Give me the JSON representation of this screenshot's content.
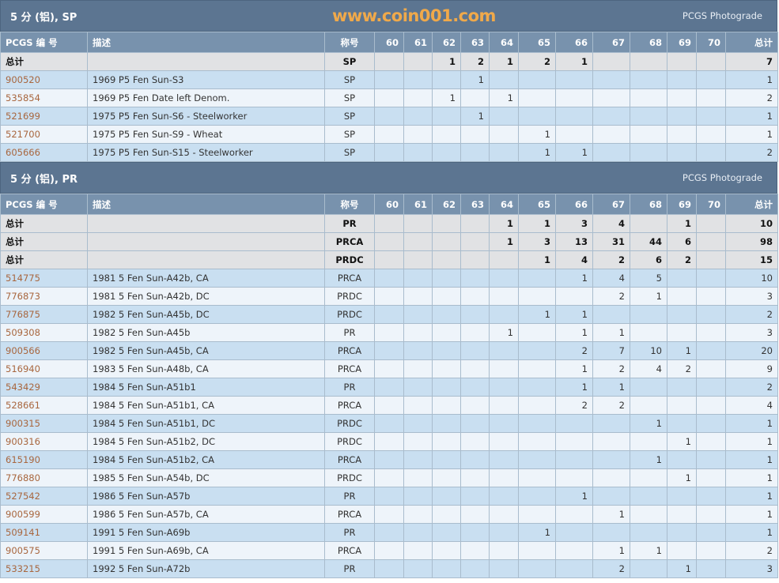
{
  "columns": {
    "pcgs": "PCGS 编 号",
    "desc": "描述",
    "designation": "称号",
    "grades": [
      "60",
      "61",
      "62",
      "63",
      "64",
      "65",
      "66",
      "67",
      "68",
      "69",
      "70"
    ],
    "total": "总计"
  },
  "photograde_label": "PCGS Photograde",
  "total_label": "总计",
  "colors": {
    "title_bar": "#5c7591",
    "header": "#7892ad",
    "link": "#a8663e",
    "row_alt": "#c9dff1",
    "total_row": "#e1e2e4"
  },
  "watermark": "www.coin001.com",
  "sections": [
    {
      "title": "5 分 (铝), SP",
      "totals": [
        {
          "designation": "SP",
          "grades": [
            "",
            "",
            "1",
            "2",
            "1",
            "2",
            "1",
            "",
            "",
            "",
            ""
          ],
          "total": "7"
        }
      ],
      "rows": [
        {
          "pcgs": "900520",
          "desc": "1969 P5 Fen Sun-S3",
          "designation": "SP",
          "grades": [
            "",
            "",
            "",
            "1",
            "",
            "",
            "",
            "",
            "",
            "",
            ""
          ],
          "total": "1"
        },
        {
          "pcgs": "535854",
          "desc": "1969 P5 Fen Date left Denom.",
          "designation": "SP",
          "grades": [
            "",
            "",
            "1",
            "",
            "1",
            "",
            "",
            "",
            "",
            "",
            ""
          ],
          "total": "2"
        },
        {
          "pcgs": "521699",
          "desc": "1975 P5 Fen Sun-S6 - Steelworker",
          "designation": "SP",
          "grades": [
            "",
            "",
            "",
            "1",
            "",
            "",
            "",
            "",
            "",
            "",
            ""
          ],
          "total": "1"
        },
        {
          "pcgs": "521700",
          "desc": "1975 P5 Fen Sun-S9 - Wheat",
          "designation": "SP",
          "grades": [
            "",
            "",
            "",
            "",
            "",
            "1",
            "",
            "",
            "",
            "",
            ""
          ],
          "total": "1"
        },
        {
          "pcgs": "605666",
          "desc": "1975 P5 Fen Sun-S15 - Steelworker",
          "designation": "SP",
          "grades": [
            "",
            "",
            "",
            "",
            "",
            "1",
            "1",
            "",
            "",
            "",
            ""
          ],
          "total": "2"
        }
      ]
    },
    {
      "title": "5 分 (铝), PR",
      "totals": [
        {
          "designation": "PR",
          "grades": [
            "",
            "",
            "",
            "",
            "1",
            "1",
            "3",
            "4",
            "",
            "1",
            ""
          ],
          "total": "10"
        },
        {
          "designation": "PRCA",
          "grades": [
            "",
            "",
            "",
            "",
            "1",
            "3",
            "13",
            "31",
            "44",
            "6",
            ""
          ],
          "total": "98"
        },
        {
          "designation": "PRDC",
          "grades": [
            "",
            "",
            "",
            "",
            "",
            "1",
            "4",
            "2",
            "6",
            "2",
            ""
          ],
          "total": "15"
        }
      ],
      "rows": [
        {
          "pcgs": "514775",
          "desc": "1981 5 Fen Sun-A42b, CA",
          "designation": "PRCA",
          "grades": [
            "",
            "",
            "",
            "",
            "",
            "",
            "1",
            "4",
            "5",
            "",
            ""
          ],
          "total": "10"
        },
        {
          "pcgs": "776873",
          "desc": "1981 5 Fen Sun-A42b, DC",
          "designation": "PRDC",
          "grades": [
            "",
            "",
            "",
            "",
            "",
            "",
            "",
            "2",
            "1",
            "",
            ""
          ],
          "total": "3"
        },
        {
          "pcgs": "776875",
          "desc": "1982 5 Fen Sun-A45b, DC",
          "designation": "PRDC",
          "grades": [
            "",
            "",
            "",
            "",
            "",
            "1",
            "1",
            "",
            "",
            "",
            ""
          ],
          "total": "2"
        },
        {
          "pcgs": "509308",
          "desc": "1982 5 Fen Sun-A45b",
          "designation": "PR",
          "grades": [
            "",
            "",
            "",
            "",
            "1",
            "",
            "1",
            "1",
            "",
            "",
            ""
          ],
          "total": "3"
        },
        {
          "pcgs": "900566",
          "desc": "1982 5 Fen Sun-A45b, CA",
          "designation": "PRCA",
          "grades": [
            "",
            "",
            "",
            "",
            "",
            "",
            "2",
            "7",
            "10",
            "1",
            ""
          ],
          "total": "20"
        },
        {
          "pcgs": "516940",
          "desc": "1983 5 Fen Sun-A48b, CA",
          "designation": "PRCA",
          "grades": [
            "",
            "",
            "",
            "",
            "",
            "",
            "1",
            "2",
            "4",
            "2",
            ""
          ],
          "total": "9"
        },
        {
          "pcgs": "543429",
          "desc": "1984 5 Fen Sun-A51b1",
          "designation": "PR",
          "grades": [
            "",
            "",
            "",
            "",
            "",
            "",
            "1",
            "1",
            "",
            "",
            ""
          ],
          "total": "2"
        },
        {
          "pcgs": "528661",
          "desc": "1984 5 Fen Sun-A51b1, CA",
          "designation": "PRCA",
          "grades": [
            "",
            "",
            "",
            "",
            "",
            "",
            "2",
            "2",
            "",
            "",
            ""
          ],
          "total": "4"
        },
        {
          "pcgs": "900315",
          "desc": "1984 5 Fen Sun-A51b1, DC",
          "designation": "PRDC",
          "grades": [
            "",
            "",
            "",
            "",
            "",
            "",
            "",
            "",
            "1",
            "",
            ""
          ],
          "total": "1"
        },
        {
          "pcgs": "900316",
          "desc": "1984 5 Fen Sun-A51b2, DC",
          "designation": "PRDC",
          "grades": [
            "",
            "",
            "",
            "",
            "",
            "",
            "",
            "",
            "",
            "1",
            ""
          ],
          "total": "1"
        },
        {
          "pcgs": "615190",
          "desc": "1984 5 Fen Sun-A51b2, CA",
          "designation": "PRCA",
          "grades": [
            "",
            "",
            "",
            "",
            "",
            "",
            "",
            "",
            "1",
            "",
            ""
          ],
          "total": "1"
        },
        {
          "pcgs": "776880",
          "desc": "1985 5 Fen Sun-A54b, DC",
          "designation": "PRDC",
          "grades": [
            "",
            "",
            "",
            "",
            "",
            "",
            "",
            "",
            "",
            "1",
            ""
          ],
          "total": "1"
        },
        {
          "pcgs": "527542",
          "desc": "1986 5 Fen Sun-A57b",
          "designation": "PR",
          "grades": [
            "",
            "",
            "",
            "",
            "",
            "",
            "1",
            "",
            "",
            "",
            ""
          ],
          "total": "1"
        },
        {
          "pcgs": "900599",
          "desc": "1986 5 Fen Sun-A57b, CA",
          "designation": "PRCA",
          "grades": [
            "",
            "",
            "",
            "",
            "",
            "",
            "",
            "1",
            "",
            "",
            ""
          ],
          "total": "1"
        },
        {
          "pcgs": "509141",
          "desc": "1991 5 Fen Sun-A69b",
          "designation": "PR",
          "grades": [
            "",
            "",
            "",
            "",
            "",
            "1",
            "",
            "",
            "",
            "",
            ""
          ],
          "total": "1"
        },
        {
          "pcgs": "900575",
          "desc": "1991 5 Fen Sun-A69b, CA",
          "designation": "PRCA",
          "grades": [
            "",
            "",
            "",
            "",
            "",
            "",
            "",
            "1",
            "1",
            "",
            ""
          ],
          "total": "2"
        },
        {
          "pcgs": "533215",
          "desc": "1992 5 Fen Sun-A72b",
          "designation": "PR",
          "grades": [
            "",
            "",
            "",
            "",
            "",
            "",
            "",
            "2",
            "",
            "1",
            ""
          ],
          "total": "3"
        }
      ]
    }
  ]
}
